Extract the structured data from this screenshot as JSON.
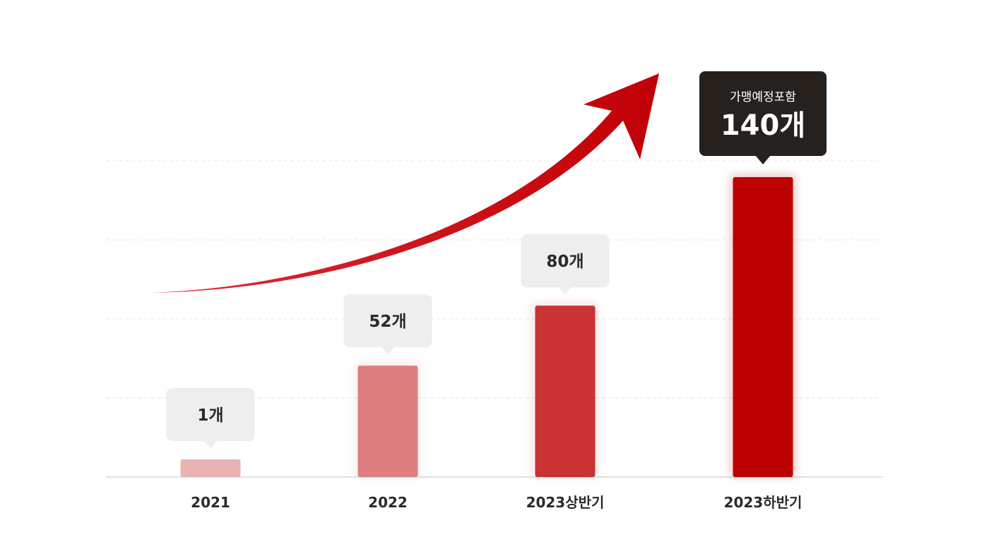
{
  "chart_data": {
    "type": "bar",
    "categories": [
      "2021",
      "2022",
      "2023상반기",
      "2023하반기"
    ],
    "values": [
      1,
      52,
      80,
      140
    ],
    "value_labels": [
      "1개",
      "52개",
      "80개",
      "140개"
    ],
    "highlight_note": "가맹예정포함",
    "bar_colors": [
      "#e9b2b3",
      "#de7e80",
      "#c93335",
      "#bb0101"
    ],
    "callout_background": "#eeeeee",
    "highlight_callout_background": "#27211e",
    "arrow_color": "#c8101a",
    "grid": true,
    "legend": "none"
  }
}
